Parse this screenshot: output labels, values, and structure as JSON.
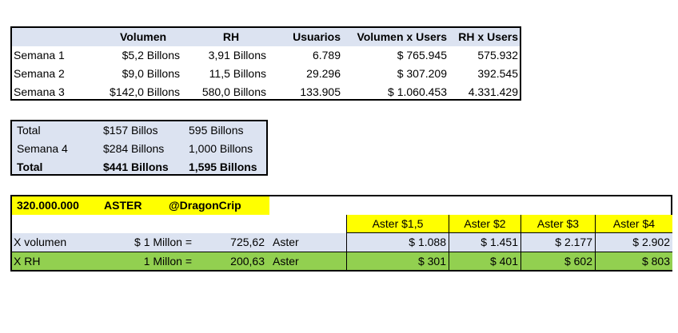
{
  "table1": {
    "headers": [
      "Volumen",
      "RH",
      "Usuarios",
      "Volumen x Users",
      "RH x Users"
    ],
    "rows": [
      {
        "label": "Semana 1",
        "volumen": "$5,2 Billons",
        "rh": "3,91 Billons",
        "usuarios": "6.789",
        "vol_users": "$ 765.945",
        "rh_users": "575.932"
      },
      {
        "label": "Semana 2",
        "volumen": "$9,0 Billons",
        "rh": "11,5 Billons",
        "usuarios": "29.296",
        "vol_users": "$ 307.209",
        "rh_users": "392.545"
      },
      {
        "label": "Semana 3",
        "volumen": "$142,0 Billons",
        "rh": "580,0 Billons",
        "usuarios": "133.905",
        "vol_users": "$ 1.060.453",
        "rh_users": "4.331.429"
      }
    ]
  },
  "table2": {
    "rows": [
      {
        "label": "Total",
        "volumen": "$157 Billos",
        "rh": "595 Billons"
      },
      {
        "label": "Semana 4",
        "volumen": "$284 Billons",
        "rh": "1,000 Billons"
      },
      {
        "label": "Total",
        "volumen": "$441 Billons",
        "rh": "1,595 Billons"
      }
    ]
  },
  "table3": {
    "amount": "320.000.000",
    "token": "ASTER",
    "handle": "@DragonCrip",
    "price_headers": [
      "Aster $1,5",
      "Aster $2",
      "Aster $3",
      "Aster $4"
    ],
    "rows": [
      {
        "label": "X volumen",
        "base": "$ 1 Millon =",
        "tokens": "725,62",
        "unit": "Aster",
        "values": [
          "$ 1.088",
          "$ 1.451",
          "$ 2.177",
          "$ 2.902"
        ]
      },
      {
        "label": "X RH",
        "base": "1 Millon =",
        "tokens": "200,63",
        "unit": "Aster",
        "values": [
          "$ 301",
          "$ 401",
          "$ 602",
          "$ 803"
        ]
      }
    ]
  },
  "colors": {
    "header_blue": "#dce3f1",
    "highlight_yellow": "#ffff00",
    "row_green": "#92d050"
  }
}
